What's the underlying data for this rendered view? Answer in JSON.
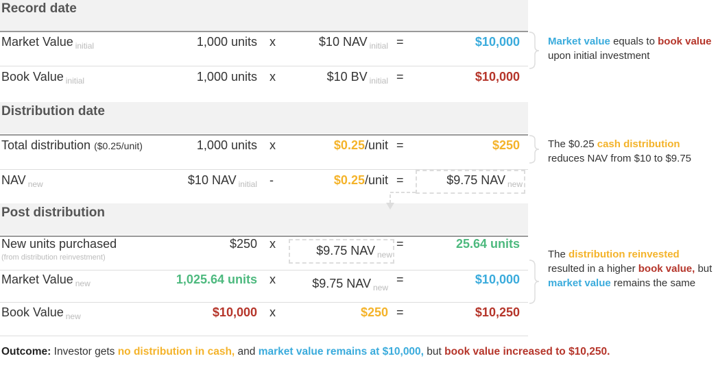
{
  "sections": [
    {
      "title": "Record date",
      "rows": [
        {
          "label": "Market Value",
          "label_sub": "initial",
          "qty": "1,000 units",
          "op": "x",
          "rate": "$10 NAV",
          "rate_sub": "initial",
          "eq": "=",
          "result": "$10,000"
        },
        {
          "label": "Book Value",
          "label_sub": "initial",
          "qty": "1,000 units",
          "op": "x",
          "rate": "$10 BV",
          "rate_sub": "initial",
          "eq": "=",
          "result": "$10,000"
        }
      ]
    },
    {
      "title": "Distribution date",
      "rows": [
        {
          "label": "Total distribution",
          "label_note": "($0.25/unit)",
          "qty": "1,000 units",
          "op": "x",
          "rate": "$0.25",
          "rate_unit": "/unit",
          "eq": "=",
          "result": "$250"
        },
        {
          "label": "NAV",
          "label_sub": "new",
          "qty": "$10 NAV",
          "qty_sub": "initial",
          "op": "-",
          "rate": "$0.25",
          "rate_unit": "/unit",
          "eq": "=",
          "result": "$9.75 NAV",
          "result_sub": "new"
        }
      ]
    },
    {
      "title": "Post distribution",
      "rows": [
        {
          "label": "New units purchased",
          "label_note": "(from distribution reinvestment)",
          "qty": "$250",
          "op": "x",
          "rate": "$9.75 NAV",
          "rate_sub": "new",
          "eq": "=",
          "result": "25.64 units"
        },
        {
          "label": "Market Value",
          "label_sub": "new",
          "qty": "1,025.64 units",
          "op": "x",
          "rate": "$9.75 NAV",
          "rate_sub": "new",
          "eq": "=",
          "result": "$10,000"
        },
        {
          "label": "Book Value",
          "label_sub": "new",
          "qty": "$10,000",
          "op": "x",
          "rate": "$250",
          "eq": "=",
          "result": "$10,250"
        }
      ]
    }
  ],
  "notes": [
    [
      "Market value",
      "equals to",
      "book value",
      "upon initial investment"
    ],
    [
      "The $0.25",
      "cash distribution",
      "reduces NAV from $10 to $9.75"
    ],
    [
      "The",
      "distribution reinvested",
      "resulted in a higher",
      "book value,",
      "but",
      "market value",
      "remains the same"
    ]
  ],
  "outcome": [
    "Outcome:",
    "Investor gets",
    "no distribution in cash,",
    "and",
    "market value remains at $10,000,",
    "but",
    "book value increased to $10,250."
  ]
}
